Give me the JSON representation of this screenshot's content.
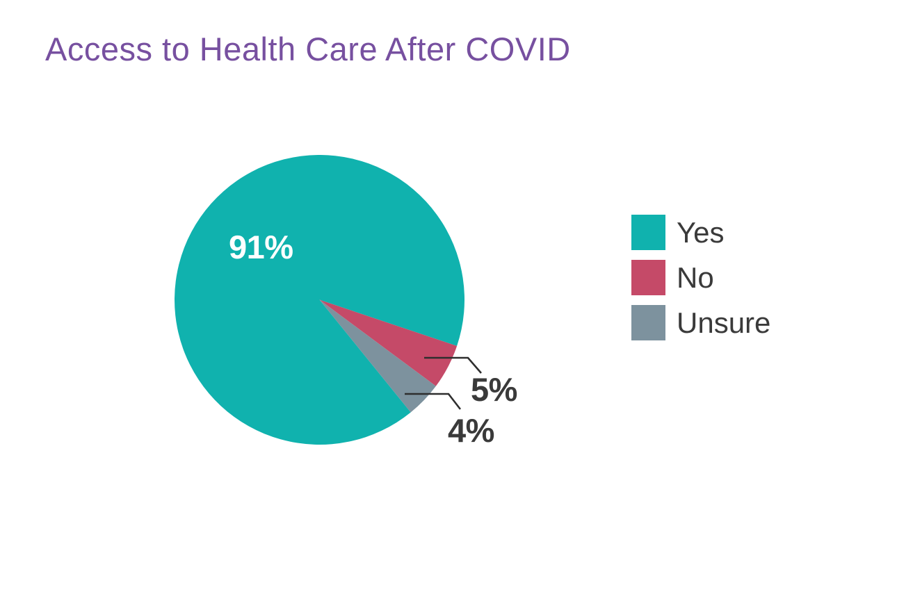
{
  "page": {
    "background_color": "#ffffff"
  },
  "chart_title": {
    "text": "Access to Health Care After COVID",
    "color": "#7750a0"
  },
  "chart_data": {
    "type": "pie",
    "title": "Access to Health Care After COVID",
    "categories": [
      "Yes",
      "No",
      "Unsure"
    ],
    "values": [
      91,
      5,
      4
    ],
    "value_unit": "%",
    "slice_labels": [
      "91%",
      "5%",
      "4%"
    ],
    "label_placement": [
      "inside",
      "callout",
      "callout"
    ],
    "colors": [
      "#10b2ae",
      "#c54a68",
      "#7d929e"
    ],
    "start_angle_deg": 141,
    "direction": "clockwise",
    "legend_position": "right",
    "legend_entries": [
      "Yes",
      "No",
      "Unsure"
    ],
    "background": "#ffffff"
  },
  "pie_labels": {
    "yes": "91%",
    "no": "5%",
    "unsure": "4%"
  },
  "legend": {
    "items": [
      {
        "label": "Yes",
        "color": "#10b2ae"
      },
      {
        "label": "No",
        "color": "#c54a68"
      },
      {
        "label": "Unsure",
        "color": "#7d929e"
      }
    ]
  },
  "styles": {
    "title_color": "#7750a0",
    "label_text_color": "#3a3a3a",
    "inside_label_color": "#ffffff",
    "leader_line_color": "#2e2e2e"
  }
}
